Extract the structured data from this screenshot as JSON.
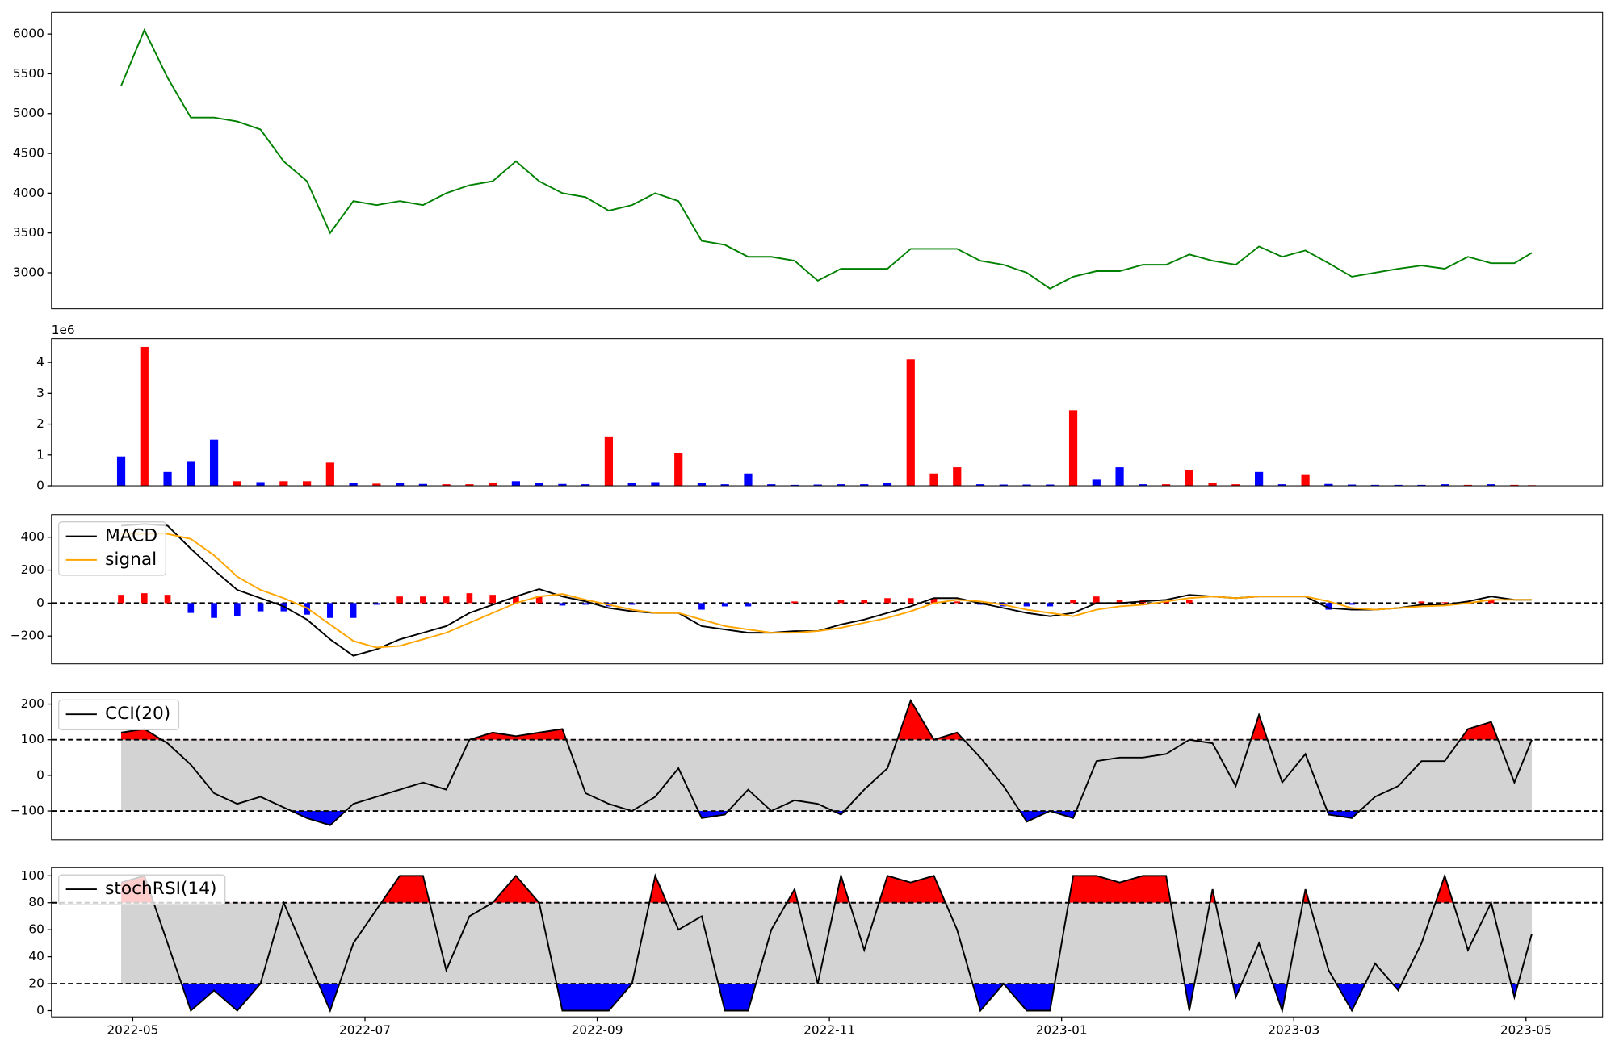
{
  "chart_data": [
    {
      "type": "line",
      "x": [
        -0.1,
        0.1,
        0.3,
        0.5,
        0.7,
        0.9,
        1.1,
        1.3,
        1.5,
        1.7,
        1.9,
        2.1,
        2.3,
        2.5,
        2.7,
        2.9,
        3.1,
        3.3,
        3.5,
        3.7,
        3.9,
        4.1,
        4.3,
        4.5,
        4.7,
        4.9,
        5.1,
        5.3,
        5.5,
        5.7,
        5.9,
        6.1,
        6.3,
        6.5,
        6.7,
        6.9,
        7.1,
        7.3,
        7.5,
        7.7,
        7.9,
        8.1,
        8.3,
        8.5,
        8.7,
        8.9,
        9.1,
        9.3,
        9.5,
        9.7,
        9.9,
        10.1,
        10.3,
        10.5,
        10.7,
        10.9,
        11.1,
        11.3,
        11.5,
        11.7,
        11.9,
        12.05
      ],
      "series": [
        {
          "color": "#008000",
          "values": [
            5350,
            6050,
            5450,
            4950,
            4950,
            4900,
            4800,
            4400,
            4150,
            3500,
            3900,
            3850,
            3900,
            3850,
            4000,
            4100,
            4150,
            4400,
            4150,
            4000,
            3950,
            3780,
            3850,
            4000,
            3900,
            3400,
            3350,
            3200,
            3200,
            3150,
            2900,
            3050,
            3050,
            3050,
            3300,
            3300,
            3300,
            3150,
            3100,
            3000,
            2800,
            2950,
            3020,
            3020,
            3100,
            3100,
            3230,
            3150,
            3100,
            3330,
            3200,
            3280,
            3120,
            2950,
            3000,
            3050,
            3090,
            3050,
            3200,
            3120,
            3120,
            3250
          ]
        }
      ],
      "ylim": [
        2547,
        6272
      ],
      "yticks": [
        3000,
        3500,
        4000,
        4500,
        5000,
        5500,
        6000
      ]
    },
    {
      "type": "bar",
      "offset_label": "1e6",
      "x": [
        -0.1,
        0.1,
        0.3,
        0.5,
        0.7,
        0.9,
        1.1,
        1.3,
        1.5,
        1.7,
        1.9,
        2.1,
        2.3,
        2.5,
        2.7,
        2.9,
        3.1,
        3.3,
        3.5,
        3.7,
        3.9,
        4.1,
        4.3,
        4.5,
        4.7,
        4.9,
        5.1,
        5.3,
        5.5,
        5.7,
        5.9,
        6.1,
        6.3,
        6.5,
        6.7,
        6.9,
        7.1,
        7.3,
        7.5,
        7.7,
        7.9,
        8.1,
        8.3,
        8.5,
        8.7,
        8.9,
        9.1,
        9.3,
        9.5,
        9.7,
        9.9,
        10.1,
        10.3,
        10.5,
        10.7,
        10.9,
        11.1,
        11.3,
        11.5,
        11.7,
        11.9,
        12.05
      ],
      "values": [
        0.95,
        4.5,
        0.45,
        0.8,
        1.5,
        0.15,
        0.12,
        0.15,
        0.15,
        0.75,
        0.08,
        0.07,
        0.1,
        0.06,
        0.05,
        0.05,
        0.08,
        0.15,
        0.1,
        0.06,
        0.05,
        1.6,
        0.1,
        0.12,
        1.05,
        0.08,
        0.05,
        0.4,
        0.05,
        0.03,
        0.04,
        0.05,
        0.05,
        0.08,
        4.1,
        0.4,
        0.6,
        0.05,
        0.04,
        0.04,
        0.04,
        2.45,
        0.2,
        0.6,
        0.05,
        0.05,
        0.5,
        0.08,
        0.05,
        0.45,
        0.05,
        0.35,
        0.06,
        0.04,
        0.03,
        0.03,
        0.03,
        0.05,
        0.03,
        0.05,
        0.03,
        0.02
      ],
      "colors": [
        "blue",
        "red",
        "blue",
        "blue",
        "blue",
        "red",
        "blue",
        "red",
        "red",
        "red",
        "blue",
        "red",
        "blue",
        "blue",
        "red",
        "red",
        "red",
        "blue",
        "blue",
        "blue",
        "blue",
        "red",
        "blue",
        "blue",
        "red",
        "blue",
        "blue",
        "blue",
        "blue",
        "blue",
        "blue",
        "blue",
        "blue",
        "blue",
        "red",
        "red",
        "red",
        "blue",
        "blue",
        "blue",
        "blue",
        "red",
        "blue",
        "blue",
        "blue",
        "red",
        "red",
        "red",
        "red",
        "blue",
        "blue",
        "red",
        "blue",
        "blue",
        "blue",
        "blue",
        "blue",
        "blue",
        "red",
        "blue",
        "red",
        "red"
      ],
      "ylim": [
        0,
        4.77
      ],
      "yticks": [
        0,
        1,
        2,
        3,
        4
      ]
    },
    {
      "type": "line",
      "hlines": [
        0
      ],
      "x": [
        -0.1,
        0.1,
        0.3,
        0.5,
        0.7,
        0.9,
        1.1,
        1.3,
        1.5,
        1.7,
        1.9,
        2.1,
        2.3,
        2.5,
        2.7,
        2.9,
        3.1,
        3.3,
        3.5,
        3.7,
        3.9,
        4.1,
        4.3,
        4.5,
        4.7,
        4.9,
        5.1,
        5.3,
        5.5,
        5.7,
        5.9,
        6.1,
        6.3,
        6.5,
        6.7,
        6.9,
        7.1,
        7.3,
        7.5,
        7.7,
        7.9,
        8.1,
        8.3,
        8.5,
        8.7,
        8.9,
        9.1,
        9.3,
        9.5,
        9.7,
        9.9,
        10.1,
        10.3,
        10.5,
        10.7,
        10.9,
        11.1,
        11.3,
        11.5,
        11.7,
        11.9,
        12.05
      ],
      "series": [
        {
          "type": "bar",
          "color": "red",
          "negative_color": "blue",
          "values": [
            50,
            60,
            50,
            -60,
            -90,
            -80,
            -50,
            -50,
            -70,
            -90,
            -90,
            -10,
            40,
            40,
            40,
            60,
            50,
            40,
            45,
            -15,
            -10,
            -20,
            -10,
            0,
            0,
            -40,
            -20,
            -20,
            0,
            10,
            0,
            20,
            20,
            30,
            30,
            30,
            10,
            -10,
            -20,
            -20,
            -20,
            20,
            40,
            20,
            20,
            10,
            20,
            0,
            0,
            0,
            0,
            0,
            -40,
            -10,
            0,
            0,
            10,
            5,
            10,
            20,
            0,
            0
          ]
        },
        {
          "name": "MACD",
          "color": "black",
          "values": [
            470,
            480,
            470,
            330,
            200,
            80,
            30,
            -20,
            -100,
            -220,
            -320,
            -280,
            -220,
            -180,
            -140,
            -60,
            -10,
            40,
            85,
            40,
            10,
            -30,
            -50,
            -60,
            -60,
            -140,
            -160,
            -180,
            -180,
            -170,
            -170,
            -130,
            -100,
            -60,
            -20,
            30,
            30,
            0,
            -30,
            -60,
            -80,
            -60,
            0,
            0,
            10,
            20,
            50,
            40,
            30,
            40,
            40,
            40,
            -30,
            -40,
            -40,
            -30,
            -10,
            -10,
            10,
            40,
            20,
            20
          ]
        },
        {
          "name": "signal",
          "color": "orange",
          "values": [
            420,
            420,
            420,
            390,
            290,
            160,
            80,
            30,
            -30,
            -130,
            -230,
            -270,
            -260,
            -220,
            -180,
            -120,
            -60,
            0,
            40,
            55,
            20,
            -10,
            -40,
            -60,
            -60,
            -100,
            -140,
            -160,
            -180,
            -180,
            -170,
            -150,
            -120,
            -90,
            -50,
            0,
            20,
            10,
            -10,
            -40,
            -60,
            -80,
            -40,
            -20,
            -10,
            10,
            30,
            40,
            30,
            40,
            40,
            40,
            10,
            -30,
            -40,
            -30,
            -20,
            -15,
            0,
            20,
            20,
            20
          ]
        }
      ],
      "ylim": [
        -369,
        537
      ],
      "yticks": [
        {
          "value": -200,
          "label": "−200"
        },
        0,
        200,
        400
      ]
    },
    {
      "type": "band",
      "thresholds": [
        -100,
        100
      ],
      "band_color": "lightgray",
      "above_color": "red",
      "below_color": "blue",
      "x": [
        -0.1,
        0.1,
        0.3,
        0.5,
        0.7,
        0.9,
        1.1,
        1.3,
        1.5,
        1.7,
        1.9,
        2.1,
        2.3,
        2.5,
        2.7,
        2.9,
        3.1,
        3.3,
        3.5,
        3.7,
        3.9,
        4.1,
        4.3,
        4.5,
        4.7,
        4.9,
        5.1,
        5.3,
        5.5,
        5.7,
        5.9,
        6.1,
        6.3,
        6.5,
        6.7,
        6.9,
        7.1,
        7.3,
        7.5,
        7.7,
        7.9,
        8.1,
        8.3,
        8.5,
        8.7,
        8.9,
        9.1,
        9.3,
        9.5,
        9.7,
        9.9,
        10.1,
        10.3,
        10.5,
        10.7,
        10.9,
        11.1,
        11.3,
        11.5,
        11.7,
        11.9,
        12.05
      ],
      "series": [
        {
          "name": "CCI(20)",
          "color": "black",
          "values": [
            120,
            130,
            90,
            30,
            -50,
            -80,
            -60,
            -90,
            -120,
            -140,
            -80,
            -60,
            -40,
            -20,
            -40,
            100,
            120,
            110,
            120,
            130,
            -50,
            -80,
            -100,
            -60,
            20,
            -120,
            -110,
            -40,
            -100,
            -70,
            -80,
            -110,
            -40,
            20,
            210,
            100,
            120,
            50,
            -30,
            -130,
            -100,
            -120,
            40,
            50,
            50,
            60,
            100,
            90,
            -30,
            170,
            -20,
            60,
            -110,
            -120,
            -60,
            -30,
            40,
            40,
            130,
            150,
            -20,
            100
          ]
        }
      ],
      "ylim": [
        -181,
        232
      ],
      "yticks": [
        {
          "value": -100,
          "label": "−100"
        },
        0,
        100,
        200
      ]
    },
    {
      "type": "band",
      "thresholds": [
        20,
        80
      ],
      "band_color": "lightgray",
      "above_color": "red",
      "below_color": "blue",
      "x": [
        -0.1,
        0.1,
        0.3,
        0.5,
        0.7,
        0.9,
        1.1,
        1.3,
        1.5,
        1.7,
        1.9,
        2.1,
        2.3,
        2.5,
        2.7,
        2.9,
        3.1,
        3.3,
        3.5,
        3.7,
        3.9,
        4.1,
        4.3,
        4.5,
        4.7,
        4.9,
        5.1,
        5.3,
        5.5,
        5.7,
        5.9,
        6.1,
        6.3,
        6.5,
        6.7,
        6.9,
        7.1,
        7.3,
        7.5,
        7.7,
        7.9,
        8.1,
        8.3,
        8.5,
        8.7,
        8.9,
        9.1,
        9.3,
        9.5,
        9.7,
        9.9,
        10.1,
        10.3,
        10.5,
        10.7,
        10.9,
        11.1,
        11.3,
        11.5,
        11.7,
        11.9,
        12.05
      ],
      "series": [
        {
          "name": "stochRSI(14)",
          "color": "black",
          "values": [
            95,
            100,
            50,
            0,
            15,
            0,
            20,
            80,
            40,
            0,
            50,
            75,
            100,
            100,
            30,
            70,
            80,
            100,
            80,
            0,
            0,
            0,
            20,
            100,
            60,
            70,
            0,
            0,
            60,
            90,
            20,
            100,
            45,
            100,
            95,
            100,
            60,
            0,
            20,
            0,
            0,
            100,
            100,
            95,
            100,
            100,
            0,
            90,
            10,
            50,
            0,
            90,
            30,
            0,
            35,
            15,
            50,
            100,
            45,
            80,
            10,
            57
          ]
        }
      ],
      "ylim": [
        -4.6,
        106
      ],
      "yticks": [
        0,
        20,
        40,
        60,
        80,
        100
      ],
      "xlim": [
        -0.7,
        12.66
      ],
      "xticks": [
        {
          "value": 0,
          "label": "2022-05"
        },
        {
          "value": 2,
          "label": "2022-07"
        },
        {
          "value": 4,
          "label": "2022-09"
        },
        {
          "value": 6,
          "label": "2022-11"
        },
        {
          "value": 8,
          "label": "2023-01"
        },
        {
          "value": 10,
          "label": "2023-03"
        },
        {
          "value": 12,
          "label": "2023-05"
        }
      ]
    }
  ]
}
